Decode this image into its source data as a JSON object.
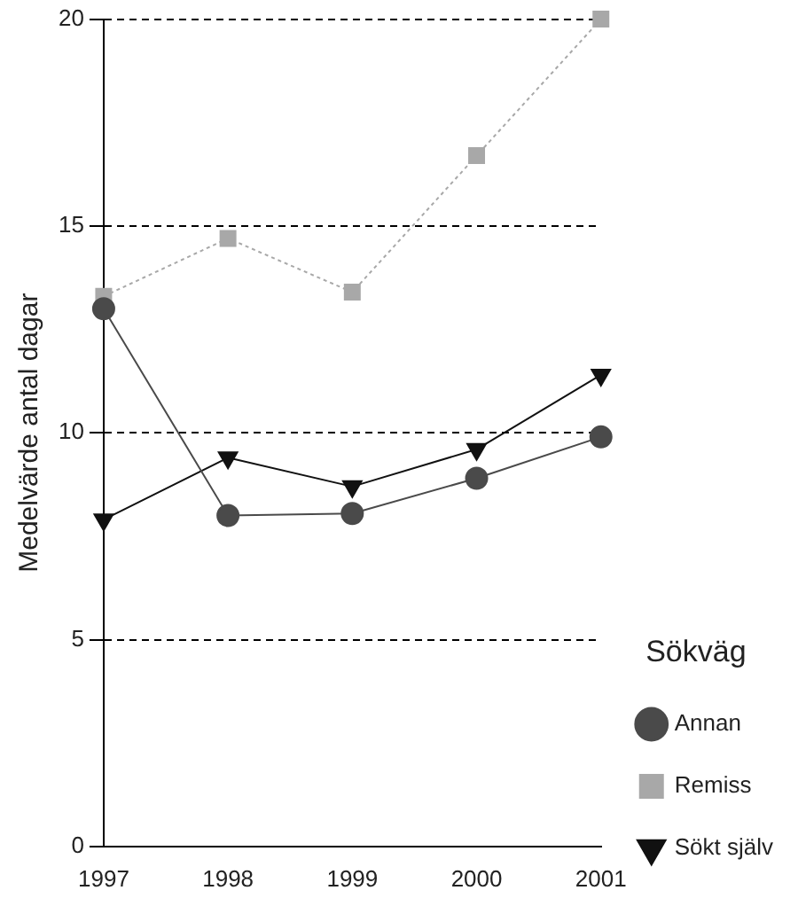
{
  "chart_data": {
    "type": "line",
    "ylabel": "Medelvärde antal dagar",
    "legend_title": "Sökväg",
    "legend": "right",
    "grid": "y",
    "categories": [
      "1997",
      "1998",
      "1999",
      "2000",
      "2001"
    ],
    "ylim": [
      0,
      20
    ],
    "yticks": [
      0,
      5,
      10,
      15,
      20
    ],
    "series": [
      {
        "name": "Annan",
        "color": "#4a4a4a",
        "marker": "circle",
        "line_style": "solid",
        "values": [
          13.0,
          8.0,
          8.05,
          8.9,
          9.9
        ]
      },
      {
        "name": "Remiss",
        "color": "#a8a8a8",
        "marker": "square",
        "line_style": "dotted",
        "values": [
          13.3,
          14.7,
          13.4,
          16.7,
          20
        ]
      },
      {
        "name": "Sökt själv",
        "color": "#111111",
        "marker": "triangle",
        "line_style": "solid",
        "values": [
          7.9,
          9.4,
          8.7,
          9.6,
          11.4
        ]
      }
    ]
  }
}
